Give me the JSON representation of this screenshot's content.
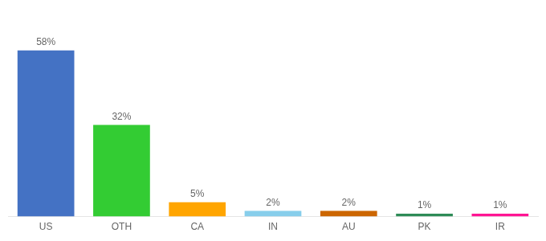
{
  "chart_data": {
    "type": "bar",
    "categories": [
      "US",
      "OTH",
      "CA",
      "IN",
      "AU",
      "PK",
      "IR"
    ],
    "values": [
      58,
      32,
      5,
      2,
      2,
      1,
      1
    ],
    "value_labels": [
      "58%",
      "32%",
      "5%",
      "2%",
      "2%",
      "1%",
      "1%"
    ],
    "colors": [
      "#4472C4",
      "#33CC33",
      "#FFA500",
      "#87CEEB",
      "#CC6600",
      "#2E8B57",
      "#FF1493"
    ],
    "ylim": [
      0,
      70
    ],
    "data_labels": true,
    "tick_labels": "x",
    "grid": false
  }
}
